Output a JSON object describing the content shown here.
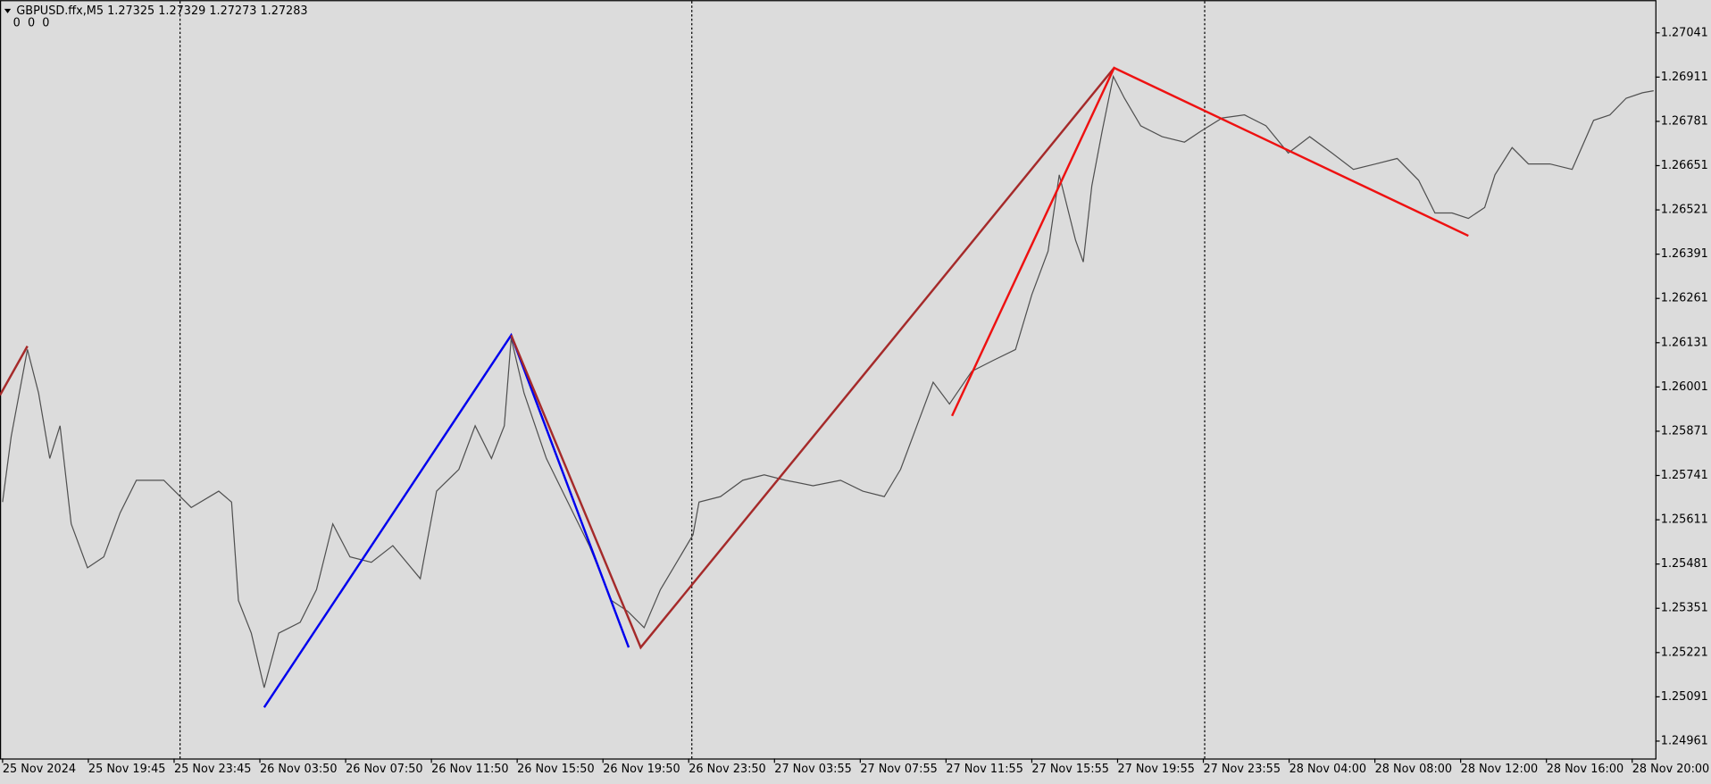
{
  "chart_data": {
    "type": "line",
    "title": "GBPUSD.ffx,M5  1.27325 1.27329 1.27273 1.27283",
    "subtitle": "0  0  0",
    "xlim": [
      -0.03,
      19.27
    ],
    "ylim": [
      1.2491,
      1.27137
    ],
    "xticks": [
      {
        "value": 0,
        "label": "25 Nov 2024"
      },
      {
        "value": 1,
        "label": "25 Nov 19:45"
      },
      {
        "value": 2,
        "label": "25 Nov 23:45"
      },
      {
        "value": 3,
        "label": "26 Nov 03:50"
      },
      {
        "value": 4,
        "label": "26 Nov 07:50"
      },
      {
        "value": 5,
        "label": "26 Nov 11:50"
      },
      {
        "value": 6,
        "label": "26 Nov 15:50"
      },
      {
        "value": 7,
        "label": "26 Nov 19:50"
      },
      {
        "value": 8,
        "label": "26 Nov 23:50"
      },
      {
        "value": 9,
        "label": "27 Nov 03:55"
      },
      {
        "value": 10,
        "label": "27 Nov 07:55"
      },
      {
        "value": 11,
        "label": "27 Nov 11:55"
      },
      {
        "value": 12,
        "label": "27 Nov 15:55"
      },
      {
        "value": 13,
        "label": "27 Nov 19:55"
      },
      {
        "value": 14,
        "label": "27 Nov 23:55"
      },
      {
        "value": 15,
        "label": "28 Nov 04:00"
      },
      {
        "value": 16,
        "label": "28 Nov 08:00"
      },
      {
        "value": 17,
        "label": "28 Nov 12:00"
      },
      {
        "value": 18,
        "label": "28 Nov 16:00"
      },
      {
        "value": 19,
        "label": "28 Nov 20:00"
      }
    ],
    "yticks": [
      1.27041,
      1.26911,
      1.26781,
      1.26651,
      1.26521,
      1.26391,
      1.26261,
      1.26131,
      1.26001,
      1.25871,
      1.25741,
      1.25611,
      1.25481,
      1.25351,
      1.25221,
      1.25091,
      1.24961
    ],
    "series": [
      {
        "color": "#505050",
        "x": [
          0,
          0.1,
          0.29,
          0.42,
          0.55,
          0.67,
          0.8,
          0.99,
          1.18,
          1.37,
          1.56,
          1.88,
          2.2,
          2.52,
          2.67,
          2.75,
          2.9,
          3.05,
          3.22,
          3.47,
          3.66,
          3.85,
          4.05,
          4.3,
          4.55,
          4.87,
          5.06,
          5.32,
          5.51,
          5.7,
          5.85,
          5.93,
          6.08,
          6.34,
          6.59,
          6.84,
          7.1,
          7.29,
          7.48,
          7.67,
          7.86,
          8.05,
          8.12,
          8.37,
          8.63,
          8.88,
          9.13,
          9.45,
          9.77,
          10.03,
          10.28,
          10.47,
          10.66,
          10.85,
          11.04,
          11.3,
          11.55,
          11.81,
          12,
          12.19,
          12.32,
          12.51,
          12.6,
          12.7,
          12.82,
          12.95,
          13.08,
          13.27,
          13.52,
          13.78,
          13.97,
          14.22,
          14.48,
          14.73,
          14.99,
          15.24,
          15.5,
          15.75,
          16.01,
          16.26,
          16.51,
          16.7,
          16.9,
          17.09,
          17.28,
          17.4,
          17.6,
          17.79,
          18.04,
          18.3,
          18.55,
          18.74,
          18.93,
          19.12,
          19.25
        ],
        "values": [
          1.25663,
          1.25855,
          1.26111,
          1.25983,
          1.25791,
          1.25887,
          1.25599,
          1.2547,
          1.25502,
          1.25631,
          1.25727,
          1.25727,
          1.25647,
          1.25695,
          1.25663,
          1.25374,
          1.25278,
          1.25118,
          1.25278,
          1.2531,
          1.25406,
          1.25599,
          1.25502,
          1.25486,
          1.25535,
          1.25438,
          1.25695,
          1.25759,
          1.25887,
          1.25791,
          1.25887,
          1.26144,
          1.25983,
          1.25791,
          1.25663,
          1.25535,
          1.25374,
          1.25342,
          1.25294,
          1.25406,
          1.25486,
          1.25567,
          1.25663,
          1.25679,
          1.25727,
          1.25743,
          1.25727,
          1.25711,
          1.25727,
          1.25695,
          1.25679,
          1.25759,
          1.25887,
          1.26015,
          1.25951,
          1.26047,
          1.26079,
          1.26111,
          1.26272,
          1.264,
          1.26624,
          1.26432,
          1.26368,
          1.26592,
          1.26752,
          1.26913,
          1.26849,
          1.26768,
          1.26736,
          1.2672,
          1.26752,
          1.26791,
          1.268,
          1.26768,
          1.26688,
          1.26736,
          1.26688,
          1.2664,
          1.26656,
          1.26672,
          1.26608,
          1.26512,
          1.26512,
          1.26496,
          1.26528,
          1.26624,
          1.26704,
          1.26656,
          1.26656,
          1.2664,
          1.26784,
          1.268,
          1.26849,
          1.26865,
          1.26871
        ]
      },
      {
        "color": "#0000ee",
        "x": [
          3.05,
          5.93,
          7.3
        ],
        "values": [
          1.2506,
          1.26153,
          1.25236
        ]
      },
      {
        "color": "#a52a2a",
        "x": [
          -0.03,
          0.29,
          5.93,
          5.93,
          7.44,
          10.2,
          12.96
        ],
        "values": [
          1.25977,
          1.26121,
          null,
          1.26153,
          1.25236,
          1.26086,
          1.26938
        ]
      },
      {
        "color": "#ee1111",
        "x": [
          11.07,
          12.96,
          17.09
        ],
        "values": [
          1.25916,
          1.26938,
          1.26445
        ]
      }
    ]
  }
}
